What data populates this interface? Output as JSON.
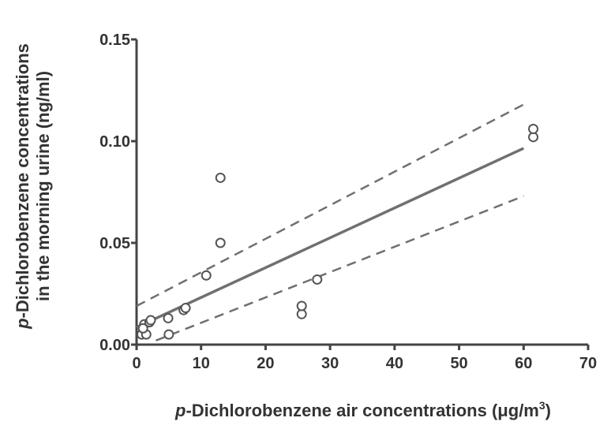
{
  "chart_data": {
    "type": "scatter",
    "x_label": [
      "p",
      "-Dichlorobenzene air concentrations (μg/m",
      "3",
      ")"
    ],
    "y_label": [
      [
        "p",
        "-Dichlorobenzene concentrations"
      ],
      [
        "in the morning urine (ng/ml)"
      ]
    ],
    "xlim": [
      0,
      70
    ],
    "ylim": [
      0,
      0.15
    ],
    "xticks": [
      0,
      10,
      20,
      30,
      40,
      50,
      60,
      70
    ],
    "yticks": [
      {
        "value": 0,
        "label": "0.00"
      },
      {
        "value": 0.05,
        "label": "0.05"
      },
      {
        "value": 0.1,
        "label": "0.10"
      },
      {
        "value": 0.15,
        "label": "0.15"
      }
    ],
    "series": [
      {
        "color": "#555555",
        "x": [
          0.8,
          1.2,
          1.5,
          2.0,
          2.2,
          1.0,
          4.9,
          5.0,
          7.3,
          7.6,
          10.8,
          13.0,
          13.0,
          25.6,
          25.6,
          28.0,
          61.5,
          61.5
        ],
        "values": [
          0.005,
          0.01,
          0.005,
          0.011,
          0.012,
          0.008,
          0.013,
          0.005,
          0.017,
          0.018,
          0.034,
          0.05,
          0.082,
          0.015,
          0.019,
          0.032,
          0.102,
          0.106
        ]
      }
    ],
    "lines": [
      {
        "x": [
          0,
          60
        ],
        "values": [
          0.0085,
          0.0965
        ],
        "dashed": false,
        "color": "#707070"
      },
      {
        "x": [
          0,
          60
        ],
        "values": [
          0.019,
          0.118
        ],
        "dashed": true,
        "color": "#707070"
      },
      {
        "x": [
          3,
          60
        ],
        "values": [
          0.002,
          0.073
        ],
        "dashed": true,
        "color": "#707070"
      }
    ]
  }
}
